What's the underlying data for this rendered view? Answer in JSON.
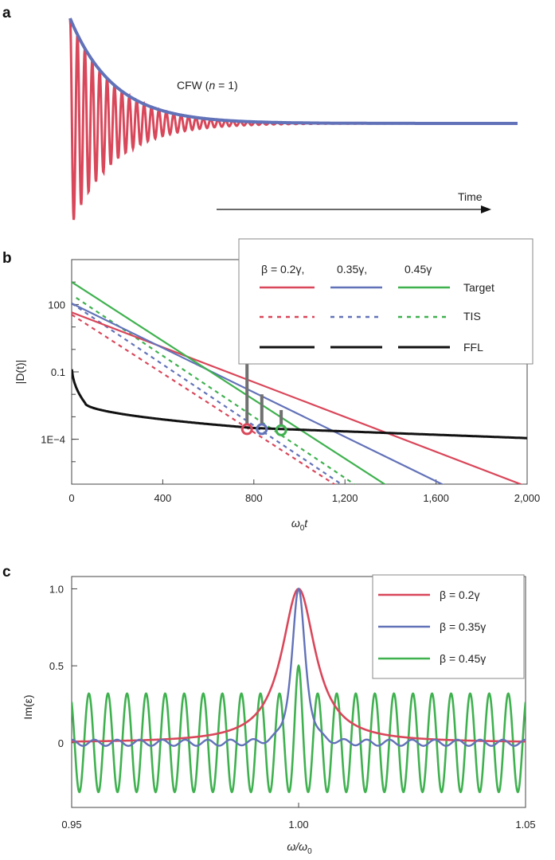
{
  "colors": {
    "red": "#d9475a",
    "blue": "#6272b8",
    "green": "#3fb14f",
    "black": "#111111",
    "marker": "#707070",
    "axis": "#444444"
  },
  "chart_data": [
    {
      "panel": "a",
      "type": "line",
      "series": [
        {
          "name": "CFW (n = 1) envelope",
          "color_key": "blue",
          "kind": "envelope"
        },
        {
          "name": "CFW (n = 1) oscillating field",
          "color_key": "red",
          "kind": "oscillation"
        }
      ],
      "label": {
        "prefix": "CFW (",
        "n": "n",
        "suffix": " = 1)"
      },
      "time_label": "Time"
    },
    {
      "panel": "b",
      "type": "line",
      "xlabel": {
        "main": "ω",
        "sub": "0",
        "tail": "t"
      },
      "ylabel": "|D(t)|",
      "xlim": [
        0,
        2000
      ],
      "ylim_log10": [
        -6,
        4
      ],
      "x_ticks": [
        {
          "value": 0,
          "label": "0"
        },
        {
          "value": 400,
          "label": "400"
        },
        {
          "value": 800,
          "label": "800"
        },
        {
          "value": 1200,
          "label": "1,200"
        },
        {
          "value": 1600,
          "label": "1,600"
        },
        {
          "value": 2000,
          "label": "2,000"
        }
      ],
      "y_ticks": [
        {
          "log": 2,
          "label": "100"
        },
        {
          "log": -1,
          "label": "0.1"
        },
        {
          "log": -4,
          "label": "1E−4"
        }
      ],
      "target": [
        {
          "name": "Target β = 0.2γ",
          "color_key": "red",
          "x0": 0,
          "log0": 1.65,
          "slope_per_1000": -3.88
        },
        {
          "name": "Target β = 0.35γ",
          "color_key": "blue",
          "x0": 0,
          "log0": 2.05,
          "slope_per_1000": -4.95
        },
        {
          "name": "Target β = 0.45γ",
          "color_key": "green",
          "x0": 0,
          "log0": 3.0,
          "slope_per_1000": -6.55
        }
      ],
      "tis": [
        {
          "name": "TIS β = 0.2γ",
          "color_key": "red",
          "x0": 0,
          "log0": 1.55,
          "slope_per_1000": -6.55
        },
        {
          "name": "TIS β = 0.35γ",
          "color_key": "blue",
          "x0": 0,
          "log0": 2.05,
          "slope_per_1000": -6.8
        },
        {
          "name": "TIS β = 0.45γ",
          "color_key": "green",
          "x0": 20,
          "log0": 2.3,
          "slope_per_1000": -6.8
        }
      ],
      "ffl": {
        "name": "FFL",
        "color_key": "black",
        "start_log": -0.6,
        "x_knee": 60,
        "log_knee": -2.4,
        "x_mid": 800,
        "log_mid": -3.5,
        "x_end": 2000,
        "log_end": -3.95
      },
      "markers": [
        {
          "color_key": "red",
          "x": 770,
          "log": -3.55
        },
        {
          "color_key": "blue",
          "x": 835,
          "log": -3.55
        },
        {
          "color_key": "green",
          "x": 920,
          "log": -3.6
        }
      ],
      "legend": {
        "header": [
          "β = 0.2γ,",
          "0.35γ,",
          "0.45γ"
        ],
        "rows": [
          "Target",
          "TIS",
          "FFL"
        ],
        "position": "top-right"
      }
    },
    {
      "panel": "c",
      "type": "line",
      "xlabel": {
        "main": "ω/ω",
        "sub": "0"
      },
      "ylabel": "Im(ε)",
      "xlim": [
        0.95,
        1.05
      ],
      "ylim": [
        -0.42,
        1.08
      ],
      "x_ticks": [
        {
          "value": 0.95,
          "label": "0.95"
        },
        {
          "value": 1.0,
          "label": "1.00"
        },
        {
          "value": 1.05,
          "label": "1.05"
        }
      ],
      "y_ticks": [
        {
          "value": 1.0,
          "label": "1.0"
        },
        {
          "value": 0.5,
          "label": "0.5"
        },
        {
          "value": 0,
          "label": "0"
        }
      ],
      "series": [
        {
          "name": "β = 0.2γ",
          "color_key": "red",
          "shape": "lorentzian",
          "peak": 1.0,
          "center": 1.0,
          "halfwidth": 0.0045,
          "baseline": 0.0
        },
        {
          "name": "β = 0.35γ",
          "color_key": "blue",
          "shape": "narrow-peak",
          "peak": 1.0,
          "center": 1.0,
          "halfwidth": 0.0018,
          "ripple_amp": 0.02,
          "ripple_period": 0.005
        },
        {
          "name": "β = 0.45γ",
          "color_key": "green",
          "shape": "oscillating",
          "peak": 0.5,
          "center": 1.0,
          "amp": 0.32,
          "period": 0.0042
        }
      ],
      "legend": {
        "entries": [
          "β = 0.2γ",
          "β = 0.35γ",
          "β = 0.45γ"
        ],
        "position": "top-right"
      }
    }
  ]
}
